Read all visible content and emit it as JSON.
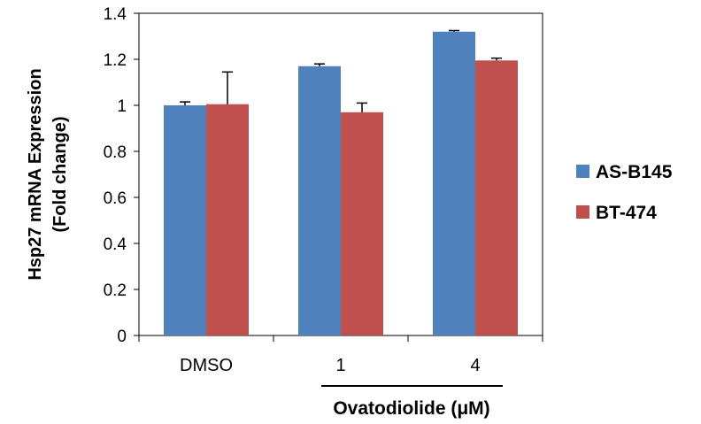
{
  "chart_data": {
    "type": "bar",
    "categories": [
      "DMSO",
      "1",
      "4"
    ],
    "series": [
      {
        "name": "AS-B145",
        "values": [
          1.0,
          1.17,
          1.32
        ],
        "errors": [
          0.015,
          0.01,
          0.005
        ],
        "color": "#4F81BD"
      },
      {
        "name": "BT-474",
        "values": [
          1.005,
          0.97,
          1.195
        ],
        "errors": [
          0.14,
          0.04,
          0.01
        ],
        "color": "#C0504D"
      }
    ],
    "ylim": [
      0,
      1.4
    ],
    "yticks": [
      "0",
      "0.2",
      "0.4",
      "0.6",
      "0.8",
      "1",
      "1.2",
      "1.4"
    ],
    "ylabel_line1": "Hsp27 mRNA Expression",
    "ylabel_line2": "(Fold change)",
    "xlabel": "Ovatodiolide (μM)",
    "legend_position": "right",
    "grid": false
  }
}
